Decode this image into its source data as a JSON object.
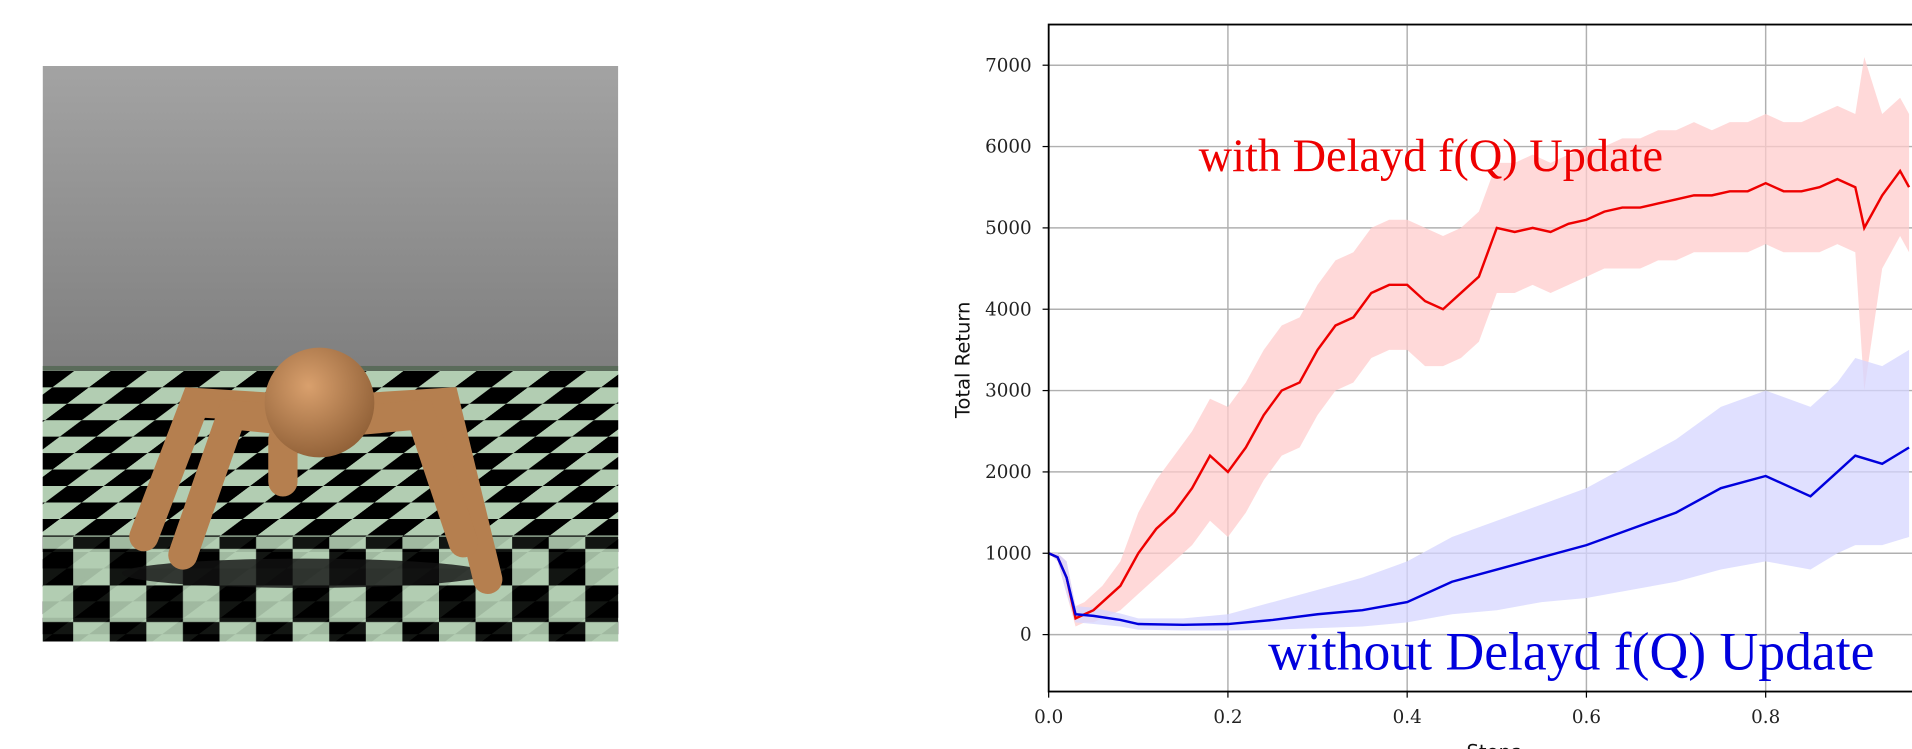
{
  "chart_data": {
    "type": "line",
    "xlabel": "Steps",
    "ylabel": "Total Return",
    "xlim": [
      0,
      1.0
    ],
    "ylim": [
      -700,
      7500
    ],
    "xticks": [
      {
        "value": 0,
        "label": "0.0"
      },
      0.2,
      0.4,
      0.6,
      0.8
    ],
    "yticks": [
      0,
      1000,
      2000,
      3000,
      4000,
      5000,
      6000,
      7000
    ],
    "grid": true,
    "annotations": [
      {
        "text": "with Delayd f(Q) Update",
        "color": "#ee0000"
      },
      {
        "text": "without Delayd f(Q) Update",
        "color": "#0000dd"
      }
    ],
    "series": [
      {
        "color": "#ee0000",
        "band_color": "#ffcccc",
        "x": [
          0,
          0.01,
          0.02,
          0.03,
          0.04,
          0.05,
          0.06,
          0.08,
          0.1,
          0.12,
          0.14,
          0.16,
          0.18,
          0.2,
          0.22,
          0.24,
          0.26,
          0.28,
          0.3,
          0.32,
          0.34,
          0.36,
          0.38,
          0.4,
          0.42,
          0.44,
          0.46,
          0.48,
          0.5,
          0.52,
          0.54,
          0.56,
          0.58,
          0.6,
          0.62,
          0.64,
          0.66,
          0.68,
          0.7,
          0.72,
          0.74,
          0.76,
          0.78,
          0.8,
          0.82,
          0.84,
          0.86,
          0.88,
          0.9,
          0.91,
          0.93,
          0.95,
          0.96
        ],
        "values": [
          1000,
          950,
          700,
          200,
          250,
          300,
          400,
          600,
          1000,
          1300,
          1500,
          1800,
          2200,
          2000,
          2300,
          2700,
          3000,
          3100,
          3500,
          3800,
          3900,
          4200,
          4300,
          4300,
          4100,
          4000,
          4200,
          4400,
          5000,
          4950,
          5000,
          4950,
          5050,
          5100,
          5200,
          5250,
          5250,
          5300,
          5350,
          5400,
          5400,
          5450,
          5450,
          5550,
          5450,
          5450,
          5500,
          5600,
          5500,
          5000,
          5400,
          5700,
          5500
        ],
        "lower": [
          1000,
          900,
          500,
          100,
          150,
          150,
          200,
          300,
          500,
          700,
          900,
          1100,
          1400,
          1200,
          1500,
          1900,
          2200,
          2300,
          2700,
          3000,
          3100,
          3400,
          3500,
          3500,
          3300,
          3300,
          3400,
          3600,
          4200,
          4200,
          4300,
          4200,
          4300,
          4400,
          4500,
          4500,
          4500,
          4600,
          4600,
          4700,
          4700,
          4700,
          4700,
          4800,
          4700,
          4700,
          4700,
          4800,
          4700,
          3000,
          4500,
          4900,
          4700
        ],
        "upper": [
          1000,
          1000,
          900,
          350,
          400,
          500,
          600,
          900,
          1500,
          1900,
          2200,
          2500,
          2900,
          2800,
          3100,
          3500,
          3800,
          3900,
          4300,
          4600,
          4700,
          5000,
          5100,
          5100,
          5000,
          4900,
          5000,
          5200,
          5800,
          5800,
          5900,
          5800,
          5900,
          6000,
          6000,
          6100,
          6100,
          6200,
          6200,
          6300,
          6200,
          6300,
          6300,
          6400,
          6300,
          6300,
          6400,
          6500,
          6400,
          7100,
          6400,
          6600,
          6400
        ]
      },
      {
        "color": "#0000dd",
        "band_color": "#d6d6ff",
        "x": [
          0,
          0.01,
          0.02,
          0.03,
          0.05,
          0.08,
          0.1,
          0.15,
          0.2,
          0.25,
          0.3,
          0.35,
          0.4,
          0.45,
          0.5,
          0.55,
          0.6,
          0.65,
          0.7,
          0.75,
          0.8,
          0.85,
          0.88,
          0.9,
          0.93,
          0.96
        ],
        "values": [
          1000,
          950,
          700,
          250,
          230,
          180,
          130,
          120,
          130,
          180,
          250,
          300,
          400,
          650,
          800,
          950,
          1100,
          1300,
          1500,
          1800,
          1950,
          1700,
          2000,
          2200,
          2100,
          2300
        ],
        "lower": [
          1000,
          900,
          500,
          150,
          130,
          100,
          60,
          50,
          50,
          60,
          80,
          100,
          150,
          250,
          300,
          400,
          450,
          550,
          650,
          800,
          900,
          800,
          1000,
          1100,
          1100,
          1200
        ],
        "upper": [
          1000,
          1000,
          900,
          350,
          330,
          260,
          200,
          200,
          250,
          400,
          550,
          700,
          900,
          1200,
          1400,
          1600,
          1800,
          2100,
          2400,
          2800,
          3000,
          2800,
          3100,
          3400,
          3300,
          3500
        ]
      }
    ]
  }
}
